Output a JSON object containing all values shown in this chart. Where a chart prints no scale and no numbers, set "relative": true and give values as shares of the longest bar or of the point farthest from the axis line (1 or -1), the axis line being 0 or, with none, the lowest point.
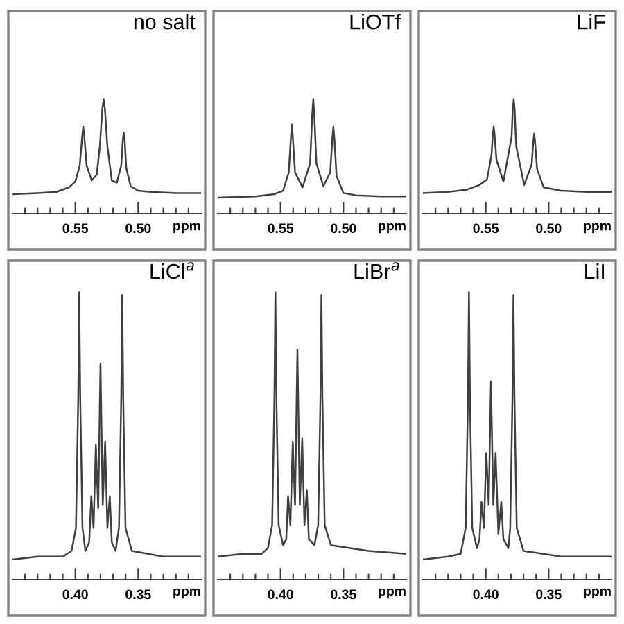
{
  "chart_data": [
    {
      "type": "line",
      "title": "no salt",
      "xlabel": "ppm",
      "relative": true,
      "tick_labels": "x",
      "grid": false,
      "xlim": [
        0.6,
        0.45
      ],
      "xticks": [
        {
          "value": 0.59,
          "label": null
        },
        {
          "value": 0.58,
          "label": null
        },
        {
          "value": 0.57,
          "label": null
        },
        {
          "value": 0.56,
          "label": null
        },
        {
          "value": 0.55,
          "label": "0.55"
        },
        {
          "value": 0.54,
          "label": null
        },
        {
          "value": 0.53,
          "label": null
        },
        {
          "value": 0.52,
          "label": null
        },
        {
          "value": 0.51,
          "label": null
        },
        {
          "value": 0.5,
          "label": "0.50"
        },
        {
          "value": 0.49,
          "label": null
        },
        {
          "value": 0.48,
          "label": null
        },
        {
          "value": 0.47,
          "label": null
        },
        {
          "value": 0.46,
          "label": null
        }
      ],
      "series": [
        {
          "color": "#404040",
          "x": [
            0.6,
            0.58,
            0.565,
            0.555,
            0.55,
            0.5465,
            0.5445,
            0.5437,
            0.5429,
            0.541,
            0.537,
            0.533,
            0.5305,
            0.5285,
            0.5275,
            0.5265,
            0.5245,
            0.521,
            0.517,
            0.5135,
            0.5122,
            0.5115,
            0.5108,
            0.5095,
            0.506,
            0.5,
            0.49,
            0.47,
            0.45
          ],
          "values": [
            0.17,
            0.18,
            0.19,
            0.23,
            0.28,
            0.42,
            0.68,
            0.76,
            0.68,
            0.42,
            0.29,
            0.34,
            0.59,
            0.92,
            1,
            0.92,
            0.59,
            0.29,
            0.27,
            0.42,
            0.65,
            0.71,
            0.65,
            0.4,
            0.24,
            0.2,
            0.19,
            0.18,
            0.18
          ]
        }
      ]
    },
    {
      "type": "line",
      "title": "LiOTf",
      "xlabel": "ppm",
      "relative": true,
      "tick_labels": "x",
      "grid": false,
      "xlim": [
        0.6,
        0.45
      ],
      "xticks": [
        {
          "value": 0.59,
          "label": null
        },
        {
          "value": 0.58,
          "label": null
        },
        {
          "value": 0.57,
          "label": null
        },
        {
          "value": 0.56,
          "label": null
        },
        {
          "value": 0.55,
          "label": "0.55"
        },
        {
          "value": 0.54,
          "label": null
        },
        {
          "value": 0.53,
          "label": null
        },
        {
          "value": 0.52,
          "label": null
        },
        {
          "value": 0.51,
          "label": null
        },
        {
          "value": 0.5,
          "label": "0.50"
        },
        {
          "value": 0.49,
          "label": null
        },
        {
          "value": 0.48,
          "label": null
        },
        {
          "value": 0.47,
          "label": null
        },
        {
          "value": 0.46,
          "label": null
        }
      ],
      "series": [
        {
          "color": "#404040",
          "x": [
            0.6,
            0.57,
            0.555,
            0.548,
            0.5435,
            0.5418,
            0.541,
            0.5402,
            0.5385,
            0.5325,
            0.5265,
            0.5248,
            0.524,
            0.5232,
            0.5215,
            0.516,
            0.5105,
            0.5088,
            0.508,
            0.5072,
            0.5055,
            0.5,
            0.49,
            0.47,
            0.45
          ],
          "values": [
            0.14,
            0.15,
            0.17,
            0.2,
            0.36,
            0.66,
            0.78,
            0.66,
            0.36,
            0.23,
            0.44,
            0.87,
            1,
            0.87,
            0.44,
            0.24,
            0.36,
            0.66,
            0.76,
            0.66,
            0.33,
            0.18,
            0.16,
            0.15,
            0.15
          ]
        }
      ]
    },
    {
      "type": "line",
      "title": "LiF",
      "xlabel": "ppm",
      "relative": true,
      "tick_labels": "x",
      "grid": false,
      "xlim": [
        0.6,
        0.45
      ],
      "xticks": [
        {
          "value": 0.59,
          "label": null
        },
        {
          "value": 0.58,
          "label": null
        },
        {
          "value": 0.57,
          "label": null
        },
        {
          "value": 0.56,
          "label": null
        },
        {
          "value": 0.55,
          "label": "0.55"
        },
        {
          "value": 0.54,
          "label": null
        },
        {
          "value": 0.53,
          "label": null
        },
        {
          "value": 0.52,
          "label": null
        },
        {
          "value": 0.51,
          "label": null
        },
        {
          "value": 0.5,
          "label": "0.50"
        },
        {
          "value": 0.49,
          "label": null
        },
        {
          "value": 0.48,
          "label": null
        },
        {
          "value": 0.47,
          "label": null
        },
        {
          "value": 0.46,
          "label": null
        }
      ],
      "series": [
        {
          "color": "#404040",
          "x": [
            0.6,
            0.58,
            0.565,
            0.56,
            0.555,
            0.549,
            0.5455,
            0.5444,
            0.5437,
            0.543,
            0.5415,
            0.536,
            0.5295,
            0.5285,
            0.5278,
            0.5271,
            0.5258,
            0.5195,
            0.5135,
            0.5122,
            0.5115,
            0.5108,
            0.5092,
            0.504,
            0.49,
            0.47,
            0.45
          ],
          "values": [
            0.18,
            0.19,
            0.21,
            0.23,
            0.25,
            0.3,
            0.51,
            0.69,
            0.76,
            0.69,
            0.47,
            0.28,
            0.67,
            0.92,
            1,
            0.92,
            0.59,
            0.25,
            0.43,
            0.63,
            0.7,
            0.63,
            0.39,
            0.23,
            0.2,
            0.19,
            0.19
          ]
        }
      ]
    },
    {
      "type": "line",
      "title": "LiCl$^{a}$",
      "xlabel": "ppm",
      "relative": true,
      "tick_labels": "x",
      "grid": false,
      "xlim": [
        0.45,
        0.3
      ],
      "xticks": [
        {
          "value": 0.44,
          "label": null
        },
        {
          "value": 0.43,
          "label": null
        },
        {
          "value": 0.42,
          "label": null
        },
        {
          "value": 0.41,
          "label": null
        },
        {
          "value": 0.4,
          "label": "0.40"
        },
        {
          "value": 0.39,
          "label": null
        },
        {
          "value": 0.38,
          "label": null
        },
        {
          "value": 0.37,
          "label": null
        },
        {
          "value": 0.36,
          "label": null
        },
        {
          "value": 0.35,
          "label": "0.35"
        },
        {
          "value": 0.34,
          "label": null
        },
        {
          "value": 0.33,
          "label": null
        },
        {
          "value": 0.32,
          "label": null
        },
        {
          "value": 0.31,
          "label": null
        }
      ],
      "series": [
        {
          "color": "#404040",
          "x": [
            0.45,
            0.43,
            0.41,
            0.403,
            0.3995,
            0.3977,
            0.3969,
            0.3961,
            0.3943,
            0.392,
            0.389,
            0.3873,
            0.3855,
            0.3837,
            0.3818,
            0.38,
            0.3782,
            0.3763,
            0.3745,
            0.3726,
            0.371,
            0.368,
            0.3653,
            0.3635,
            0.3627,
            0.3619,
            0.3601,
            0.355,
            0.33,
            0.3
          ],
          "values": [
            0.07,
            0.08,
            0.08,
            0.1,
            0.18,
            0.63,
            1,
            0.63,
            0.18,
            0.1,
            0.13,
            0.29,
            0.18,
            0.47,
            0.25,
            0.75,
            0.26,
            0.48,
            0.18,
            0.29,
            0.13,
            0.1,
            0.18,
            0.63,
            0.99,
            0.63,
            0.18,
            0.1,
            0.08,
            0.08
          ]
        }
      ]
    },
    {
      "type": "line",
      "title": "LiBr$^{a}$",
      "xlabel": "ppm",
      "relative": true,
      "tick_labels": "x",
      "grid": false,
      "xlim": [
        0.45,
        0.3
      ],
      "xticks": [
        {
          "value": 0.44,
          "label": null
        },
        {
          "value": 0.43,
          "label": null
        },
        {
          "value": 0.42,
          "label": null
        },
        {
          "value": 0.41,
          "label": null
        },
        {
          "value": 0.4,
          "label": "0.40"
        },
        {
          "value": 0.39,
          "label": null
        },
        {
          "value": 0.38,
          "label": null
        },
        {
          "value": 0.37,
          "label": null
        },
        {
          "value": 0.36,
          "label": null
        },
        {
          "value": 0.35,
          "label": "0.35"
        },
        {
          "value": 0.34,
          "label": null
        },
        {
          "value": 0.33,
          "label": null
        },
        {
          "value": 0.32,
          "label": null
        },
        {
          "value": 0.31,
          "label": null
        }
      ],
      "series": [
        {
          "color": "#404040",
          "x": [
            0.45,
            0.43,
            0.415,
            0.41,
            0.4067,
            0.4049,
            0.4041,
            0.4033,
            0.4015,
            0.398,
            0.3955,
            0.394,
            0.3922,
            0.3903,
            0.3885,
            0.3866,
            0.3847,
            0.3828,
            0.381,
            0.3791,
            0.3775,
            0.373,
            0.3701,
            0.3683,
            0.3675,
            0.3667,
            0.3649,
            0.36,
            0.33,
            0.3
          ],
          "values": [
            0.08,
            0.09,
            0.09,
            0.11,
            0.19,
            0.63,
            1,
            0.63,
            0.19,
            0.12,
            0.14,
            0.29,
            0.19,
            0.48,
            0.26,
            0.8,
            0.26,
            0.49,
            0.19,
            0.31,
            0.14,
            0.12,
            0.19,
            0.63,
            0.99,
            0.63,
            0.19,
            0.12,
            0.1,
            0.09
          ]
        }
      ]
    },
    {
      "type": "line",
      "title": "LiI",
      "xlabel": "ppm",
      "relative": true,
      "tick_labels": "x",
      "grid": false,
      "xlim": [
        0.45,
        0.3
      ],
      "xticks": [
        {
          "value": 0.44,
          "label": null
        },
        {
          "value": 0.43,
          "label": null
        },
        {
          "value": 0.42,
          "label": null
        },
        {
          "value": 0.41,
          "label": null
        },
        {
          "value": 0.4,
          "label": "0.40"
        },
        {
          "value": 0.39,
          "label": null
        },
        {
          "value": 0.38,
          "label": null
        },
        {
          "value": 0.37,
          "label": null
        },
        {
          "value": 0.36,
          "label": null
        },
        {
          "value": 0.35,
          "label": "0.35"
        },
        {
          "value": 0.34,
          "label": null
        },
        {
          "value": 0.33,
          "label": null
        },
        {
          "value": 0.32,
          "label": null
        },
        {
          "value": 0.31,
          "label": null
        }
      ],
      "series": [
        {
          "color": "#404040",
          "x": [
            0.45,
            0.43,
            0.42,
            0.416,
            0.4142,
            0.4134,
            0.4126,
            0.4108,
            0.407,
            0.405,
            0.4034,
            0.4015,
            0.3996,
            0.3977,
            0.3959,
            0.394,
            0.3922,
            0.39,
            0.3877,
            0.386,
            0.382,
            0.3806,
            0.3788,
            0.378,
            0.3772,
            0.3754,
            0.37,
            0.34,
            0.3
          ],
          "values": [
            0.07,
            0.08,
            0.09,
            0.18,
            0.63,
            1,
            0.63,
            0.18,
            0.11,
            0.14,
            0.27,
            0.18,
            0.44,
            0.26,
            0.69,
            0.26,
            0.44,
            0.16,
            0.27,
            0.14,
            0.11,
            0.18,
            0.63,
            0.99,
            0.63,
            0.18,
            0.1,
            0.08,
            0.08
          ]
        }
      ]
    }
  ]
}
